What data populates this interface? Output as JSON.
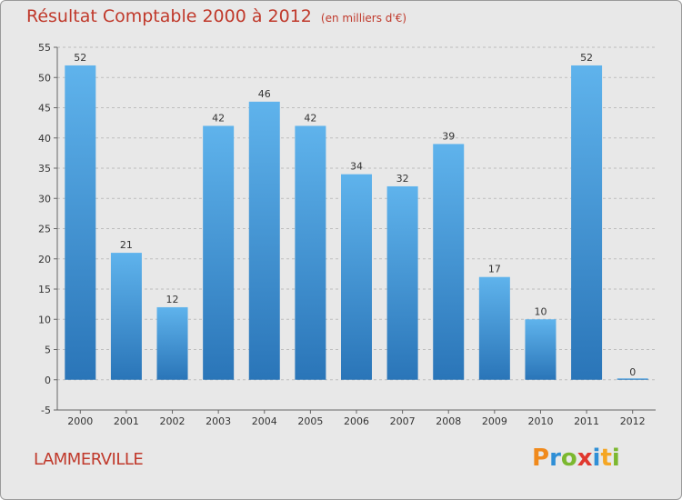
{
  "header": {
    "title": "Résultat Comptable 2000 à 2012",
    "unit": "(en milliers d'€)"
  },
  "footer": {
    "commune": "LAMMERVILLE",
    "brand_letters": [
      "P",
      "r",
      "o",
      "x",
      "i",
      "t",
      "i"
    ],
    "brand_colors": [
      "#f08a1c",
      "#2f8fd6",
      "#7cb82f",
      "#e0382f",
      "#2f8fd6",
      "#f5a623",
      "#7cb82f"
    ]
  },
  "colors": {
    "bar_top": "#5fb3ec",
    "bar_bottom": "#2a75b8",
    "title": "#c0392b",
    "background": "#e8e8e8",
    "grid": "#bdbdbd"
  },
  "chart_data": {
    "type": "bar",
    "title": "Résultat Comptable 2000 à 2012",
    "subtitle": "(en milliers d'€)",
    "categories": [
      "2000",
      "2001",
      "2002",
      "2003",
      "2004",
      "2005",
      "2006",
      "2007",
      "2008",
      "2009",
      "2010",
      "2011",
      "2012"
    ],
    "values": [
      52,
      21,
      12,
      42,
      46,
      42,
      34,
      32,
      39,
      17,
      10,
      52,
      0
    ],
    "ylim": [
      -5,
      55
    ],
    "yticks": [
      -5,
      0,
      5,
      10,
      15,
      20,
      25,
      30,
      35,
      40,
      45,
      50,
      55
    ],
    "grid": "horizontal dashed",
    "legend": "none"
  }
}
